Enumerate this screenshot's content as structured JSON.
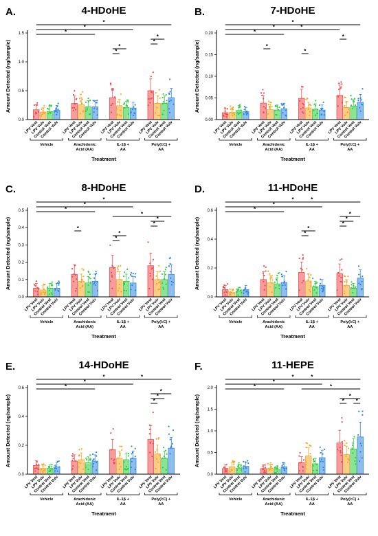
{
  "figure": {
    "groups": [
      "Vehicle",
      "Arachidonic Acid (AA)",
      "IL-1β + AA",
      "Poly(I:C) + AA"
    ],
    "groups_alt": [
      "Vehicle",
      "Arachidonic Acid (AA)",
      "IL-1β + AA",
      "Poly(I:C) + AA"
    ],
    "categories": [
      "LPV Vest",
      "LPV Vulv",
      "Control Vest",
      "Control Vulv"
    ],
    "colors": {
      "LPV Vest": "#ef4b4b",
      "LPV Vulv": "#f5a623",
      "Control Vest": "#2ecc40",
      "Control Vulv": "#2e86de"
    },
    "ylabel": "Amount Detected (ng/sample)",
    "xlabel": "Treatment"
  },
  "chart_data": [
    {
      "letter": "A.",
      "title": "4-HDoHE",
      "type": "bar",
      "ylim": [
        0,
        1.5
      ],
      "yticks": [
        0.0,
        0.5,
        1.0,
        1.5
      ],
      "ytick_labels": [
        "0.0",
        "0.5",
        "1.0",
        "1.5"
      ],
      "series": [
        {
          "name": "Vehicle",
          "values": [
            0.17,
            0.13,
            0.14,
            0.16
          ]
        },
        {
          "name": "Arachidonic Acid (AA)",
          "values": [
            0.28,
            0.26,
            0.22,
            0.22
          ]
        },
        {
          "name": "IL-1β + AA",
          "values": [
            0.38,
            0.24,
            0.21,
            0.2
          ]
        },
        {
          "name": "Poly(I:C) + AA",
          "values": [
            0.5,
            0.28,
            0.28,
            0.38
          ]
        }
      ],
      "brackets": [
        {
          "from": 0,
          "to": 15,
          "level": 0
        },
        {
          "from": 0,
          "to": 11,
          "level": 1
        },
        {
          "from": 0,
          "to": 7,
          "level": 2
        },
        {
          "from": 12,
          "to": 14,
          "level": 3
        },
        {
          "from": 12,
          "to": 13,
          "level": 4
        },
        {
          "from": 8,
          "to": 10,
          "level": 5
        },
        {
          "from": 8,
          "to": 9,
          "level": 6
        }
      ]
    },
    {
      "letter": "B.",
      "title": "7-HDoHE",
      "type": "bar",
      "ylim": [
        0,
        0.2
      ],
      "yticks": [
        0.0,
        0.05,
        0.1,
        0.15,
        0.2
      ],
      "ytick_labels": [
        "0.00",
        "0.05",
        "0.10",
        "0.15",
        "0.20"
      ],
      "series": [
        {
          "name": "Vehicle",
          "values": [
            0.016,
            0.017,
            0.021,
            0.018
          ]
        },
        {
          "name": "Arachidonic Acid (AA)",
          "values": [
            0.038,
            0.023,
            0.022,
            0.025
          ]
        },
        {
          "name": "IL-1β + AA",
          "values": [
            0.049,
            0.027,
            0.024,
            0.022
          ]
        },
        {
          "name": "Poly(I:C) + AA",
          "values": [
            0.056,
            0.028,
            0.031,
            0.04
          ]
        }
      ],
      "brackets": [
        {
          "from": 0,
          "to": 15,
          "level": 0
        },
        {
          "from": 0,
          "to": 11,
          "level": 1
        },
        {
          "from": 0,
          "to": 7,
          "level": 2
        },
        {
          "from": 4,
          "to": 12,
          "level": 1
        },
        {
          "from": 12,
          "to": 13,
          "level": 3
        },
        {
          "from": 4,
          "to": 5,
          "level": 5
        },
        {
          "from": 8,
          "to": 9,
          "level": 6
        }
      ]
    },
    {
      "letter": "C.",
      "title": "8-HDoHE",
      "type": "bar",
      "ylim": [
        0,
        0.5
      ],
      "yticks": [
        0.0,
        0.1,
        0.2,
        0.3,
        0.4,
        0.5
      ],
      "ytick_labels": [
        "0.0",
        "0.1",
        "0.2",
        "0.3",
        "0.4",
        "0.5"
      ],
      "series": [
        {
          "name": "Vehicle",
          "values": [
            0.05,
            0.04,
            0.05,
            0.05
          ]
        },
        {
          "name": "Arachidonic Acid (AA)",
          "values": [
            0.13,
            0.09,
            0.08,
            0.09
          ]
        },
        {
          "name": "IL-1β + AA",
          "values": [
            0.17,
            0.1,
            0.09,
            0.08
          ]
        },
        {
          "name": "Poly(I:C) + AA",
          "values": [
            0.18,
            0.1,
            0.1,
            0.13
          ]
        }
      ],
      "brackets": [
        {
          "from": 0,
          "to": 15,
          "level": 0
        },
        {
          "from": 0,
          "to": 11,
          "level": 1
        },
        {
          "from": 0,
          "to": 7,
          "level": 2
        },
        {
          "from": 8,
          "to": 15,
          "level": 3
        },
        {
          "from": 12,
          "to": 14,
          "level": 4
        },
        {
          "from": 12,
          "to": 13,
          "level": 5
        },
        {
          "from": 4,
          "to": 5,
          "level": 6
        },
        {
          "from": 8,
          "to": 10,
          "level": 7
        },
        {
          "from": 8,
          "to": 9,
          "level": 8
        }
      ]
    },
    {
      "letter": "D.",
      "title": "11-HDoHE",
      "type": "bar",
      "ylim": [
        0,
        0.6
      ],
      "yticks": [
        0.0,
        0.2,
        0.4,
        0.6
      ],
      "ytick_labels": [
        "0.0",
        "0.2",
        "0.4",
        "0.6"
      ],
      "series": [
        {
          "name": "Vehicle",
          "values": [
            0.05,
            0.03,
            0.04,
            0.05
          ]
        },
        {
          "name": "Arachidonic Acid (AA)",
          "values": [
            0.12,
            0.1,
            0.09,
            0.1
          ]
        },
        {
          "name": "IL-1β + AA",
          "values": [
            0.17,
            0.11,
            0.07,
            0.08
          ]
        },
        {
          "name": "Poly(I:C) + AA",
          "values": [
            0.16,
            0.08,
            0.06,
            0.13
          ]
        }
      ],
      "brackets": [
        {
          "from": 0,
          "to": 15,
          "level": 0
        },
        {
          "from": 0,
          "to": 11,
          "level": 1
        },
        {
          "from": 0,
          "to": 7,
          "level": 2
        },
        {
          "from": 4,
          "to": 15,
          "level": 0
        },
        {
          "from": 12,
          "to": 15,
          "level": 3
        },
        {
          "from": 12,
          "to": 14,
          "level": 4
        },
        {
          "from": 12,
          "to": 13,
          "level": 5
        },
        {
          "from": 8,
          "to": 10,
          "level": 6
        },
        {
          "from": 8,
          "to": 9,
          "level": 7
        }
      ]
    },
    {
      "letter": "E.",
      "title": "14-HDoHE",
      "type": "bar",
      "ylim": [
        0,
        0.6
      ],
      "yticks": [
        0.0,
        0.2,
        0.4,
        0.6
      ],
      "ytick_labels": [
        "0.0",
        "0.2",
        "0.4",
        "0.6"
      ],
      "series": [
        {
          "name": "Vehicle",
          "values": [
            0.06,
            0.04,
            0.04,
            0.05
          ]
        },
        {
          "name": "Arachidonic Acid (AA)",
          "values": [
            0.09,
            0.1,
            0.08,
            0.09
          ]
        },
        {
          "name": "IL-1β + AA",
          "values": [
            0.17,
            0.11,
            0.1,
            0.11
          ]
        },
        {
          "name": "Poly(I:C) + AA",
          "values": [
            0.24,
            0.14,
            0.11,
            0.18
          ]
        }
      ],
      "brackets": [
        {
          "from": 0,
          "to": 15,
          "level": 0
        },
        {
          "from": 0,
          "to": 11,
          "level": 1
        },
        {
          "from": 0,
          "to": 7,
          "level": 2
        },
        {
          "from": 8,
          "to": 15,
          "level": 0
        },
        {
          "from": 12,
          "to": 15,
          "level": 3
        },
        {
          "from": 12,
          "to": 14,
          "level": 4
        },
        {
          "from": 12,
          "to": 13,
          "level": 5
        }
      ]
    },
    {
      "letter": "F.",
      "title": "11-HEPE",
      "type": "bar",
      "ylim": [
        0,
        2.0
      ],
      "yticks": [
        0.0,
        0.5,
        1.0,
        1.5,
        2.0
      ],
      "ytick_labels": [
        "0.0",
        "0.5",
        "1.0",
        "1.5",
        "2.0"
      ],
      "series": [
        {
          "name": "Vehicle",
          "values": [
            0.13,
            0.17,
            0.14,
            0.18
          ]
        },
        {
          "name": "Arachidonic Acid (AA)",
          "values": [
            0.13,
            0.14,
            0.11,
            0.17
          ]
        },
        {
          "name": "IL-1β + AA",
          "values": [
            0.27,
            0.42,
            0.24,
            0.38
          ]
        },
        {
          "name": "Poly(I:C) + AA",
          "values": [
            0.72,
            0.45,
            0.58,
            0.86
          ]
        }
      ],
      "brackets": [
        {
          "from": 0,
          "to": 15,
          "level": 0
        },
        {
          "from": 0,
          "to": 11,
          "level": 1
        },
        {
          "from": 0,
          "to": 7,
          "level": 2
        },
        {
          "from": 4,
          "to": 15,
          "level": 0
        },
        {
          "from": 8,
          "to": 15,
          "level": 2
        },
        {
          "from": 12,
          "to": 15,
          "level": 4
        },
        {
          "from": 12,
          "to": 13,
          "level": 5
        },
        {
          "from": 14,
          "to": 15,
          "level": 5
        }
      ]
    }
  ]
}
